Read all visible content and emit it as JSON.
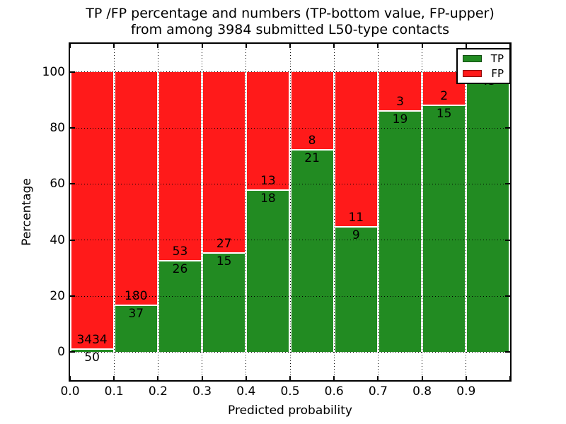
{
  "title": {
    "line1": "TP /FP percentage and numbers (TP-bottom value, FP-upper)",
    "line2": "from among 3984 submitted L50-type contacts"
  },
  "chart_data": {
    "type": "bar",
    "stacked": true,
    "percent_normalized": true,
    "bin_width": 0.1,
    "bin_edges": [
      0.0,
      0.1,
      0.2,
      0.3,
      0.4,
      0.5,
      0.6,
      0.7,
      0.8,
      0.9,
      1.0
    ],
    "categories": [
      "0.0-0.1",
      "0.1-0.2",
      "0.2-0.3",
      "0.3-0.4",
      "0.4-0.5",
      "0.5-0.6",
      "0.6-0.7",
      "0.7-0.8",
      "0.8-0.9",
      "0.9-1.0"
    ],
    "series": [
      {
        "name": "TP",
        "color": "#228b22",
        "values": [
          50,
          37,
          26,
          15,
          18,
          21,
          9,
          19,
          15,
          43
        ]
      },
      {
        "name": "FP",
        "color": "#ff1a1a",
        "values": [
          3434,
          180,
          53,
          27,
          13,
          8,
          11,
          3,
          2,
          0
        ]
      }
    ],
    "tp_percent_of_bin": [
      1.4,
      17.1,
      32.9,
      35.7,
      58.1,
      72.4,
      45.0,
      86.4,
      88.2,
      100.0
    ],
    "total_contacts": 3984,
    "xlabel": "Predicted probability",
    "ylabel": "Percentage",
    "x_tick_labels": [
      "0.0",
      "0.1",
      "0.2",
      "0.3",
      "0.4",
      "0.5",
      "0.6",
      "0.7",
      "0.8",
      "0.9"
    ],
    "y_tick_values": [
      0,
      20,
      40,
      60,
      80,
      100
    ],
    "y_tick_labels": [
      "0",
      "20",
      "40",
      "60",
      "80",
      "100"
    ],
    "xlim": [
      0.0,
      1.0
    ],
    "ylim": [
      -10,
      110
    ],
    "grid": "dotted",
    "legend": {
      "position": "upper right",
      "entries": [
        {
          "label": "TP",
          "color": "#228b22"
        },
        {
          "label": "FP",
          "color": "#ff1a1a"
        }
      ]
    }
  }
}
